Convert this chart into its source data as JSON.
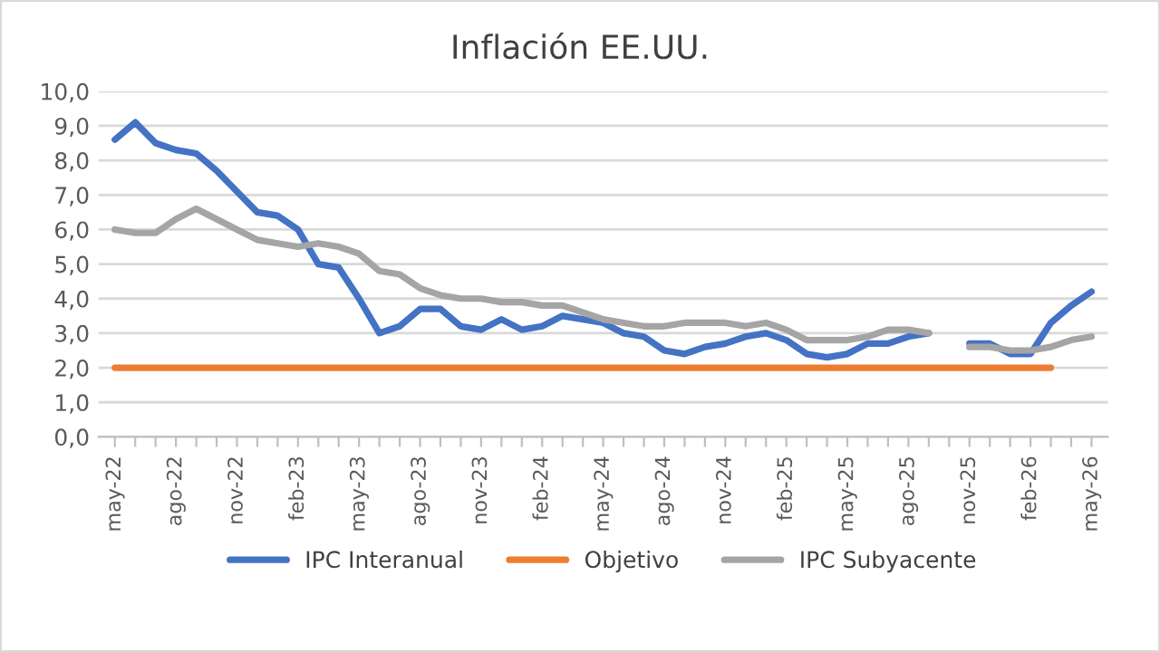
{
  "chart_data": {
    "type": "line",
    "title": "Inflación EE.UU.",
    "categories": [
      "may-22",
      null,
      null,
      "ago-22",
      null,
      null,
      "nov-22",
      null,
      null,
      "feb-23",
      null,
      null,
      "may-23",
      null,
      null,
      "ago-23",
      null,
      null,
      "nov-23",
      null,
      null,
      "feb-24",
      null,
      null,
      "may-24",
      null,
      null,
      "ago-24",
      null,
      null,
      "nov-24",
      null,
      null,
      "feb-25",
      null,
      null,
      "may-25",
      null,
      null,
      "ago-25",
      null,
      null,
      "nov-25",
      null,
      null,
      "feb-26",
      null,
      null,
      "may-26"
    ],
    "series": [
      {
        "name": "IPC Interanual",
        "color": "#4472c4",
        "values": [
          8.6,
          9.1,
          8.5,
          8.3,
          8.2,
          7.7,
          7.1,
          6.5,
          6.4,
          6.0,
          5.0,
          4.9,
          4.0,
          3.0,
          3.2,
          3.7,
          3.7,
          3.2,
          3.1,
          3.4,
          3.1,
          3.2,
          3.5,
          3.4,
          3.3,
          3.0,
          2.9,
          2.5,
          2.4,
          2.6,
          2.7,
          2.9,
          3.0,
          2.8,
          2.4,
          2.3,
          2.4,
          2.7,
          2.7,
          2.9,
          3.0,
          null,
          2.7,
          2.7,
          2.4,
          2.4,
          3.3,
          3.8,
          4.2
        ]
      },
      {
        "name": "Objetivo",
        "color": "#ed7d31",
        "values": [
          2.0,
          2.0,
          2.0,
          2.0,
          2.0,
          2.0,
          2.0,
          2.0,
          2.0,
          2.0,
          2.0,
          2.0,
          2.0,
          2.0,
          2.0,
          2.0,
          2.0,
          2.0,
          2.0,
          2.0,
          2.0,
          2.0,
          2.0,
          2.0,
          2.0,
          2.0,
          2.0,
          2.0,
          2.0,
          2.0,
          2.0,
          2.0,
          2.0,
          2.0,
          2.0,
          2.0,
          2.0,
          2.0,
          2.0,
          2.0,
          2.0,
          2.0,
          2.0,
          2.0,
          2.0,
          2.0,
          2.0,
          null,
          null
        ]
      },
      {
        "name": "IPC Subyacente",
        "color": "#a5a5a5",
        "values": [
          6.0,
          5.9,
          5.9,
          6.3,
          6.6,
          6.3,
          6.0,
          5.7,
          5.6,
          5.5,
          5.6,
          5.5,
          5.3,
          4.8,
          4.7,
          4.3,
          4.1,
          4.0,
          4.0,
          3.9,
          3.9,
          3.8,
          3.8,
          3.6,
          3.4,
          3.3,
          3.2,
          3.2,
          3.3,
          3.3,
          3.3,
          3.2,
          3.3,
          3.1,
          2.8,
          2.8,
          2.8,
          2.9,
          3.1,
          3.1,
          3.0,
          null,
          2.6,
          2.6,
          2.5,
          2.5,
          2.6,
          2.8,
          2.9
        ]
      }
    ],
    "ylim": [
      0,
      10
    ],
    "yticks": [
      {
        "value": 0,
        "label": "0,0"
      },
      {
        "value": 1,
        "label": "1,0"
      },
      {
        "value": 2,
        "label": "2,0"
      },
      {
        "value": 3,
        "label": "3,0"
      },
      {
        "value": 4,
        "label": "4,0"
      },
      {
        "value": 5,
        "label": "5,0"
      },
      {
        "value": 6,
        "label": "6,0"
      },
      {
        "value": 7,
        "label": "7,0"
      },
      {
        "value": 8,
        "label": "8,0"
      },
      {
        "value": 9,
        "label": "9,0"
      },
      {
        "value": 10,
        "label": "10,0"
      }
    ],
    "grid": "y",
    "legend": "bottom",
    "marker": "none",
    "line_style": "solid"
  }
}
